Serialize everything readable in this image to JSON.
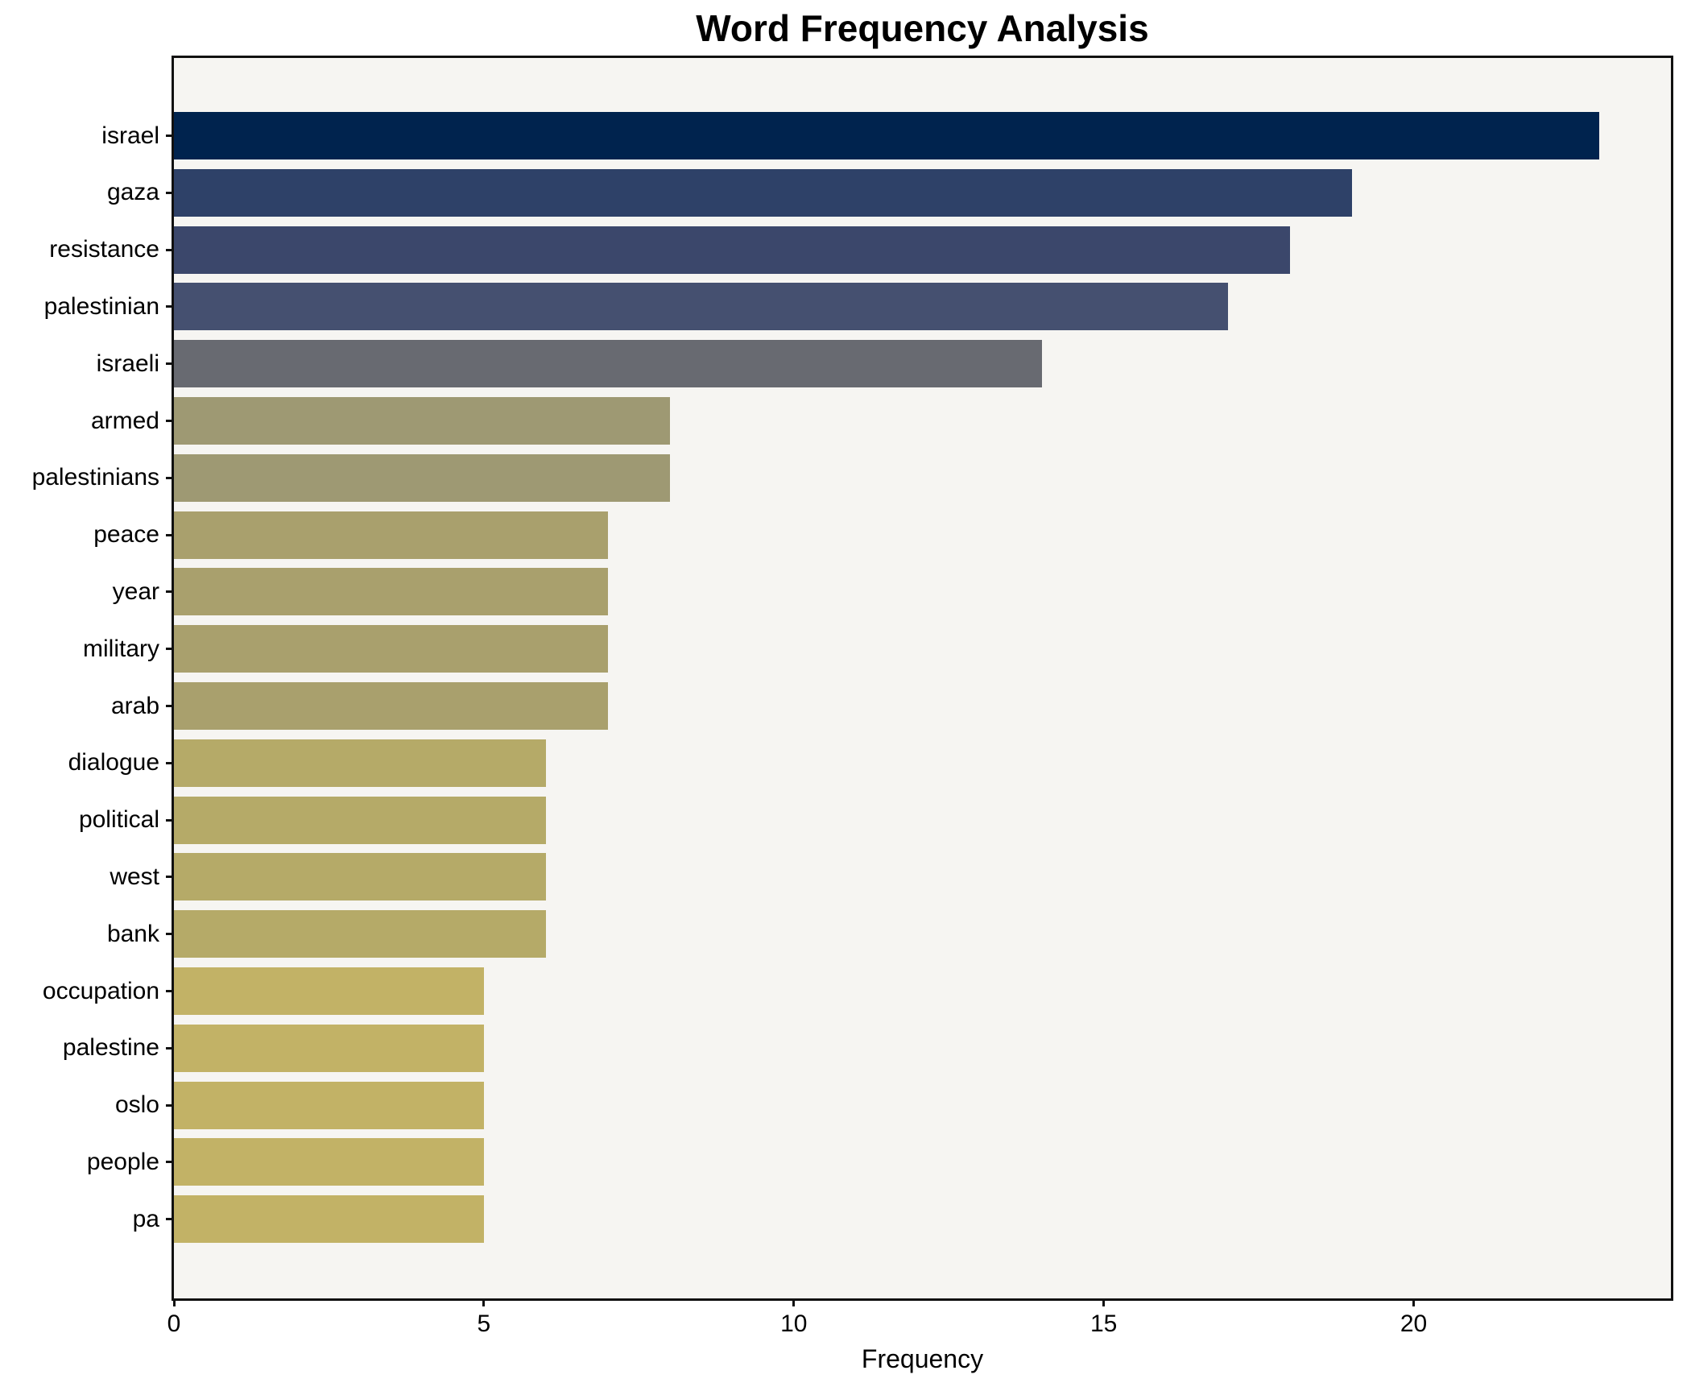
{
  "title": "Word Frequency Analysis",
  "chart_data": {
    "type": "bar",
    "orientation": "horizontal",
    "title": "Word Frequency Analysis",
    "xlabel": "Frequency",
    "ylabel": "",
    "grid": false,
    "legend": null,
    "xlim": [
      0,
      24.15
    ],
    "xticks": [
      0,
      5,
      10,
      15,
      20
    ],
    "categories": [
      "israel",
      "gaza",
      "resistance",
      "palestinian",
      "israeli",
      "armed",
      "palestinians",
      "peace",
      "year",
      "military",
      "arab",
      "dialogue",
      "political",
      "west",
      "bank",
      "occupation",
      "palestine",
      "oslo",
      "people",
      "pa"
    ],
    "values": [
      23,
      19,
      18,
      17,
      14,
      8,
      8,
      7,
      7,
      7,
      7,
      6,
      6,
      6,
      6,
      5,
      5,
      5,
      5,
      5
    ],
    "bar_colors": [
      "#00234e",
      "#2e4168",
      "#3b476b",
      "#455070",
      "#686a71",
      "#9e9973",
      "#9e9973",
      "#a9a06d",
      "#a9a06d",
      "#a9a06d",
      "#a9a06d",
      "#b5aa68",
      "#b5aa68",
      "#b5aa68",
      "#b5aa68",
      "#c2b266",
      "#c2b266",
      "#c2b266",
      "#c2b266",
      "#c2b266"
    ]
  },
  "colors": {
    "page_background": "#ffffff",
    "plot_background": "#f6f5f2",
    "spine": "#111111",
    "text": "#000000"
  }
}
